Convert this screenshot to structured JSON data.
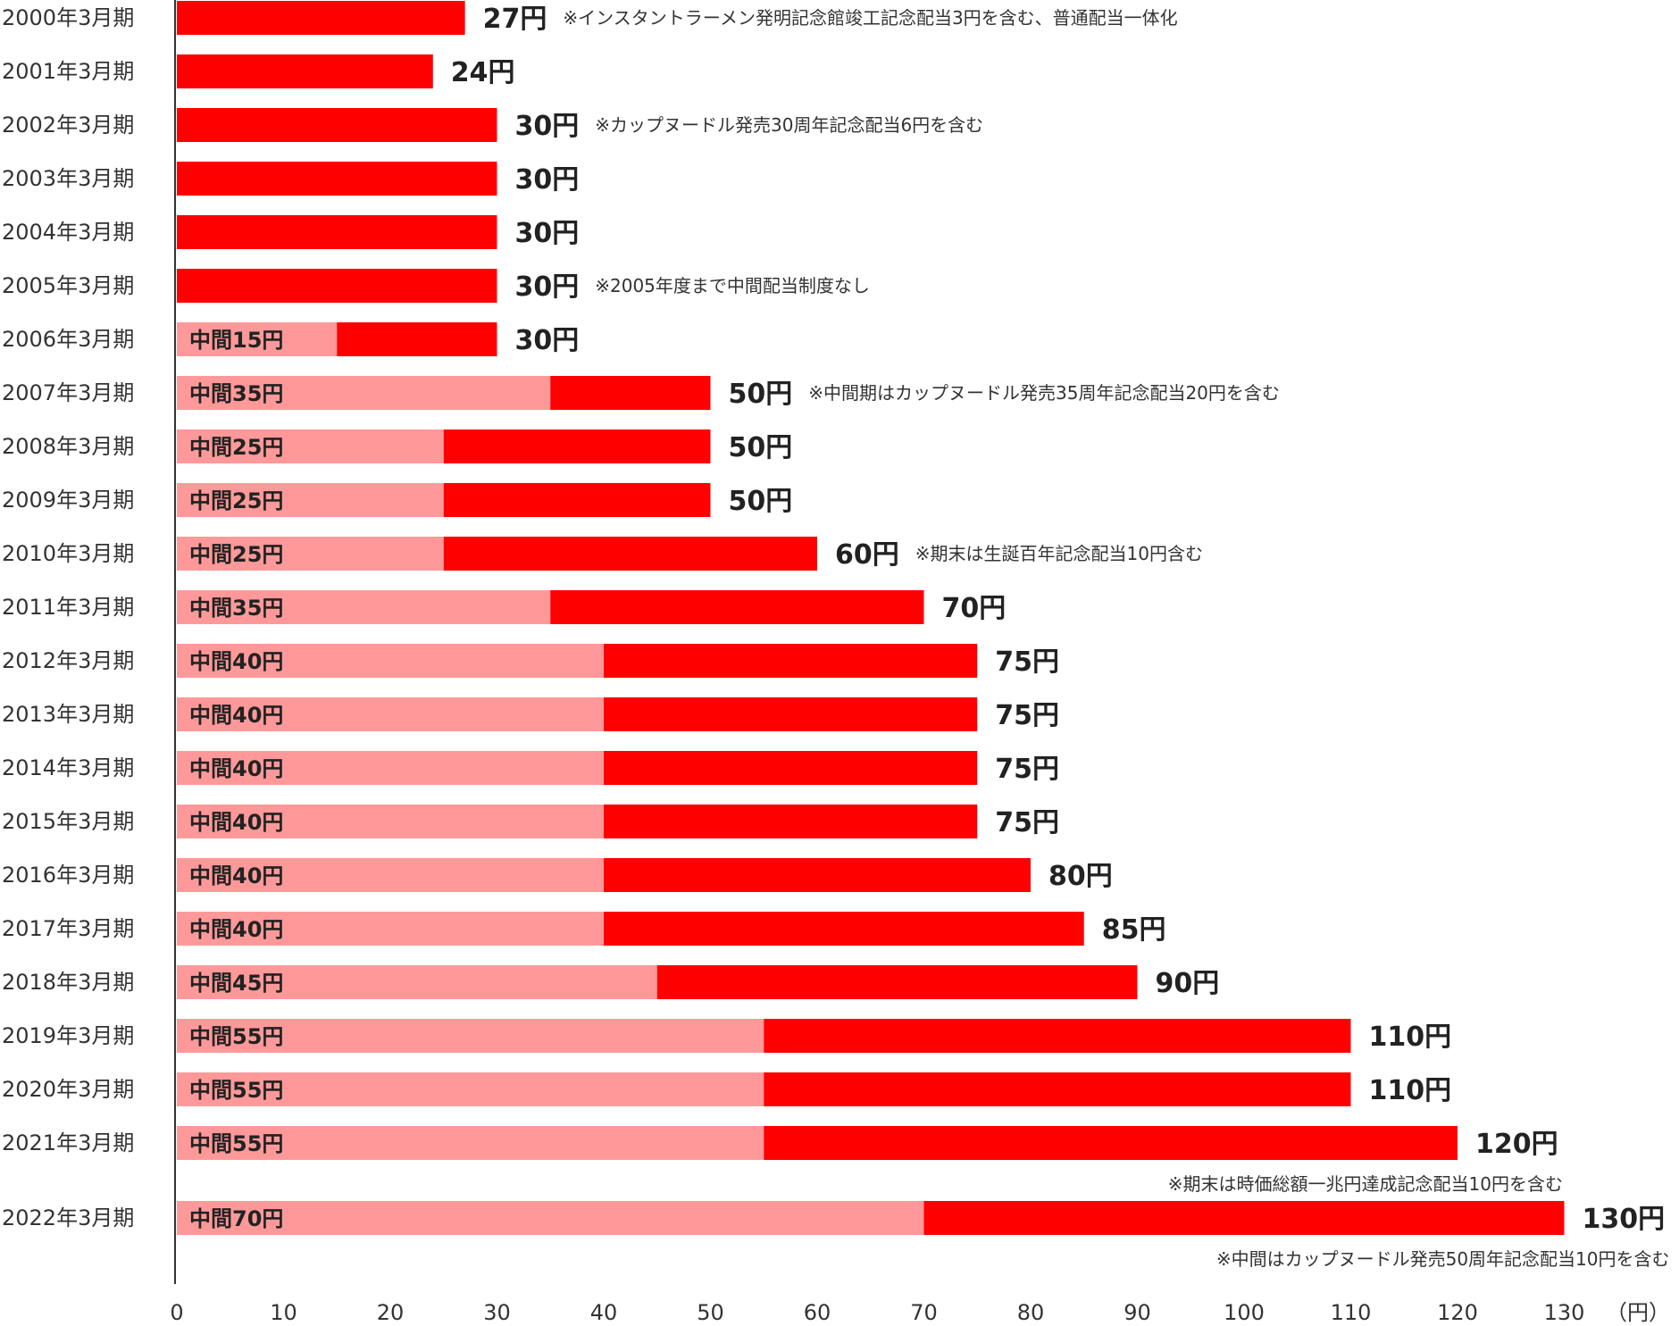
{
  "chart_data": {
    "type": "bar",
    "orientation": "horizontal",
    "stacked": true,
    "title": "",
    "xlabel": "",
    "ylabel": "",
    "xlim": [
      0,
      130
    ],
    "x_ticks": [
      0,
      10,
      20,
      30,
      40,
      50,
      60,
      70,
      80,
      90,
      100,
      110,
      120,
      130
    ],
    "x_unit_label": "（円）",
    "grid": false,
    "legend": "none",
    "colors": {
      "interim": "#ff9999",
      "year_end": "#ff0000"
    },
    "rows": [
      {
        "category": "2000年3月期",
        "total": 27,
        "interim": null,
        "total_label": "27円",
        "interim_label": "",
        "note": "※インスタントラーメン発明記念館竣工記念配当3円を含む、普通配当一体化",
        "note_position": "right"
      },
      {
        "category": "2001年3月期",
        "total": 24,
        "interim": null,
        "total_label": "24円",
        "interim_label": "",
        "note": "",
        "note_position": "right"
      },
      {
        "category": "2002年3月期",
        "total": 30,
        "interim": null,
        "total_label": "30円",
        "interim_label": "",
        "note": "※カップヌードル発売30周年記念配当6円を含む",
        "note_position": "right"
      },
      {
        "category": "2003年3月期",
        "total": 30,
        "interim": null,
        "total_label": "30円",
        "interim_label": "",
        "note": "",
        "note_position": "right"
      },
      {
        "category": "2004年3月期",
        "total": 30,
        "interim": null,
        "total_label": "30円",
        "interim_label": "",
        "note": "",
        "note_position": "right"
      },
      {
        "category": "2005年3月期",
        "total": 30,
        "interim": null,
        "total_label": "30円",
        "interim_label": "",
        "note": "※2005年度まで中間配当制度なし",
        "note_position": "right"
      },
      {
        "category": "2006年3月期",
        "total": 30,
        "interim": 15,
        "total_label": "30円",
        "interim_label": "中間15円",
        "note": "",
        "note_position": "right"
      },
      {
        "category": "2007年3月期",
        "total": 50,
        "interim": 35,
        "total_label": "50円",
        "interim_label": "中間35円",
        "note": "※中間期はカップヌードル発売35周年記念配当20円を含む",
        "note_position": "right"
      },
      {
        "category": "2008年3月期",
        "total": 50,
        "interim": 25,
        "total_label": "50円",
        "interim_label": "中間25円",
        "note": "",
        "note_position": "right"
      },
      {
        "category": "2009年3月期",
        "total": 50,
        "interim": 25,
        "total_label": "50円",
        "interim_label": "中間25円",
        "note": "",
        "note_position": "right"
      },
      {
        "category": "2010年3月期",
        "total": 60,
        "interim": 25,
        "total_label": "60円",
        "interim_label": "中間25円",
        "note": "※期末は生誕百年記念配当10円含む",
        "note_position": "right"
      },
      {
        "category": "2011年3月期",
        "total": 70,
        "interim": 35,
        "total_label": "70円",
        "interim_label": "中間35円",
        "note": "",
        "note_position": "right"
      },
      {
        "category": "2012年3月期",
        "total": 75,
        "interim": 40,
        "total_label": "75円",
        "interim_label": "中間40円",
        "note": "",
        "note_position": "right"
      },
      {
        "category": "2013年3月期",
        "total": 75,
        "interim": 40,
        "total_label": "75円",
        "interim_label": "中間40円",
        "note": "",
        "note_position": "right"
      },
      {
        "category": "2014年3月期",
        "total": 75,
        "interim": 40,
        "total_label": "75円",
        "interim_label": "中間40円",
        "note": "",
        "note_position": "right"
      },
      {
        "category": "2015年3月期",
        "total": 75,
        "interim": 40,
        "total_label": "75円",
        "interim_label": "中間40円",
        "note": "",
        "note_position": "right"
      },
      {
        "category": "2016年3月期",
        "total": 80,
        "interim": 40,
        "total_label": "80円",
        "interim_label": "中間40円",
        "note": "",
        "note_position": "right"
      },
      {
        "category": "2017年3月期",
        "total": 85,
        "interim": 40,
        "total_label": "85円",
        "interim_label": "中間40円",
        "note": "",
        "note_position": "right"
      },
      {
        "category": "2018年3月期",
        "total": 90,
        "interim": 45,
        "total_label": "90円",
        "interim_label": "中間45円",
        "note": "",
        "note_position": "right"
      },
      {
        "category": "2019年3月期",
        "total": 110,
        "interim": 55,
        "total_label": "110円",
        "interim_label": "中間55円",
        "note": "",
        "note_position": "right"
      },
      {
        "category": "2020年3月期",
        "total": 110,
        "interim": 55,
        "total_label": "110円",
        "interim_label": "中間55円",
        "note": "",
        "note_position": "right"
      },
      {
        "category": "2021年3月期",
        "total": 120,
        "interim": 55,
        "total_label": "120円",
        "interim_label": "中間55円",
        "note": "※期末は時価総額一兆円達成記念配当10円を含む",
        "note_position": "below"
      },
      {
        "category": "2022年3月期",
        "total": 130,
        "interim": 70,
        "total_label": "130円",
        "interim_label": "中間70円",
        "note": "※中間はカップヌードル発売50周年記念配当10円を含む",
        "note_position": "below"
      }
    ]
  }
}
